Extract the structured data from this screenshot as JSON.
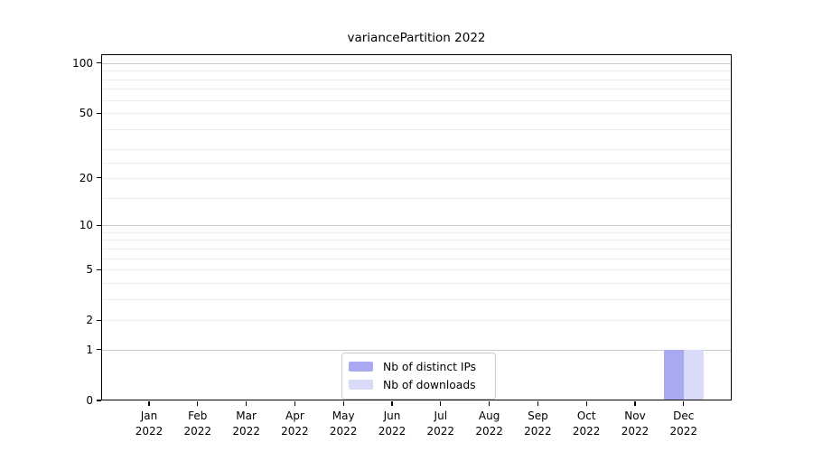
{
  "chart_data": {
    "type": "bar",
    "title": "variancePartition 2022",
    "xlabel": "",
    "ylabel": "",
    "x_tick_months": [
      "Jan",
      "Feb",
      "Mar",
      "Apr",
      "May",
      "Jun",
      "Jul",
      "Aug",
      "Sep",
      "Oct",
      "Nov",
      "Dec"
    ],
    "x_tick_year": "2022",
    "categories": [
      "Jan 2022",
      "Feb 2022",
      "Mar 2022",
      "Apr 2022",
      "May 2022",
      "Jun 2022",
      "Jul 2022",
      "Aug 2022",
      "Sep 2022",
      "Oct 2022",
      "Nov 2022",
      "Dec 2022"
    ],
    "series": [
      {
        "name": "Nb of distinct IPs",
        "color": "#a9a9f2",
        "values": [
          0,
          0,
          0,
          0,
          0,
          0,
          0,
          0,
          0,
          0,
          0,
          1
        ]
      },
      {
        "name": "Nb of downloads",
        "color": "#d9d9f8",
        "values": [
          0,
          0,
          0,
          0,
          0,
          0,
          0,
          0,
          0,
          0,
          0,
          1
        ]
      }
    ],
    "yscale": "log1p",
    "ylim": [
      0,
      114
    ],
    "y_major_ticks": [
      0,
      1,
      2,
      5,
      10,
      20,
      50,
      100
    ],
    "y_decade_gridlines": [
      1,
      10,
      100
    ],
    "y_minor_gridlines": [
      2,
      3,
      4,
      5,
      6,
      7,
      8,
      9,
      15,
      20,
      25,
      30,
      40,
      50,
      60,
      70,
      80,
      90
    ],
    "grid": "on",
    "legend_position": "lower center",
    "colors": {
      "axis": "#000000",
      "major_grid": "#c9c9c9",
      "minor_grid": "#ededed",
      "background": "#ffffff",
      "text": "#000000",
      "legend_border": "#cccccc"
    }
  }
}
